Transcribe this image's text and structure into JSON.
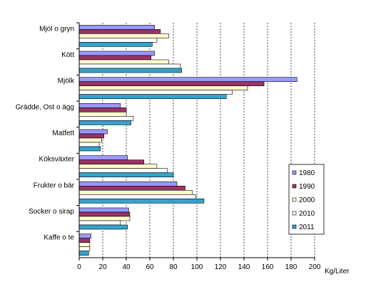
{
  "chart_data": {
    "type": "bar",
    "orientation": "horizontal",
    "title": "",
    "xlabel": "Kg/Liter",
    "ylabel": "",
    "xlim": [
      0,
      200
    ],
    "xticks": [
      0,
      20,
      40,
      60,
      80,
      100,
      120,
      140,
      160,
      180,
      200
    ],
    "grid": "vertical dashed",
    "legend_position": "right",
    "categories": [
      "Mjöl o gryn",
      "Kött",
      "Mjölk",
      "Grädde, Ost o ägg",
      "Matfett",
      "Köksväxter",
      "Frukter o bär",
      "Socker o sirap",
      "Kaffe o te"
    ],
    "series": [
      {
        "name": "1980",
        "color": "#9999ff",
        "values": [
          64,
          64,
          185,
          35,
          24,
          41,
          83,
          42,
          10
        ]
      },
      {
        "name": "1990",
        "color": "#993366",
        "values": [
          69,
          61,
          157,
          40,
          21,
          55,
          90,
          43,
          9
        ]
      },
      {
        "name": "2000",
        "color": "#ffffcc",
        "values": [
          76,
          76,
          143,
          40,
          19,
          66,
          96,
          43,
          9
        ]
      },
      {
        "name": "2010",
        "color": "#ffffff",
        "values": [
          66,
          86,
          130,
          46,
          17,
          75,
          99,
          35,
          9
        ]
      },
      {
        "name": "2011",
        "color": "#33a3cc",
        "values": [
          62,
          87,
          125,
          44,
          18,
          80,
          106,
          41,
          8
        ]
      }
    ]
  }
}
